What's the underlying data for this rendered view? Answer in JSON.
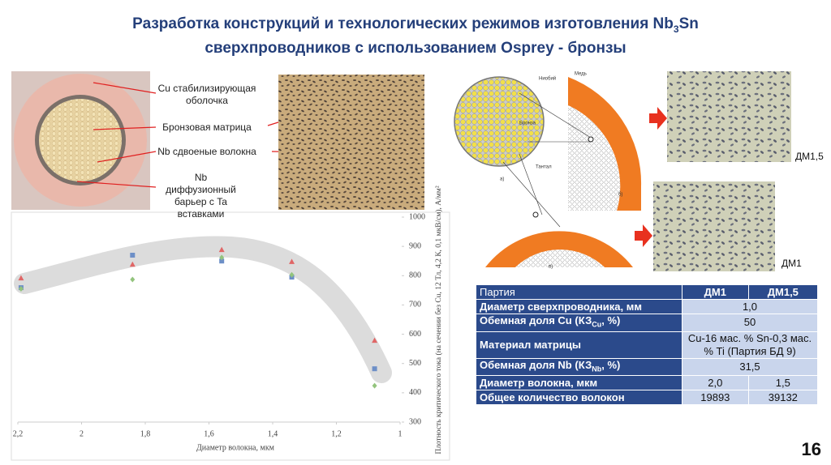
{
  "header": {
    "title_1": "Разработка конструкций и технологических режимов изготовления Nb",
    "title_sub": "3",
    "title_2": "Sn",
    "title_3": "сверхпроводников с использованием Osprey - бронзы"
  },
  "image_labels": [
    "Cu стабилизирующая оболочка",
    "Бронзовая матрица",
    "Nb сдвоеные волокна",
    "Nb диффузионный барьер с Ta вставками"
  ],
  "diagram_labels": {
    "niobium": "Ниобий",
    "copper": "Медь",
    "bronze": "Бронза",
    "tantalum": "Тантал",
    "a": "а)",
    "b": "б)",
    "c": "в)"
  },
  "micrograph_labels": [
    "ДМ1,5",
    "ДМ1"
  ],
  "chart_data": {
    "type": "scatter",
    "x_label": "Диаметр волокна, мкм",
    "y_label": "Плотность критического тока (на сечении без Cu, 12 Тл, 4,2 К, 0,1 мкВ/см), А/мм²",
    "x": [
      2.19,
      1.84,
      1.56,
      1.34,
      1.08
    ],
    "series": [
      {
        "color": "#e06666",
        "marker": "triangle",
        "values": [
          792,
          839,
          889,
          848,
          579
        ]
      },
      {
        "color": "#6d8fc7",
        "marker": "square",
        "values": [
          759,
          870,
          850,
          795,
          482
        ]
      },
      {
        "color": "#93c47d",
        "marker": "diamond",
        "values": [
          755,
          787,
          862,
          803,
          424
        ]
      }
    ],
    "xlim": [
      2.2,
      1.0
    ],
    "ylim": [
      300,
      1000
    ],
    "xticks": [
      {
        "value": 2.2,
        "label": "2,2"
      },
      2,
      {
        "value": 1.8,
        "label": "1,8"
      },
      {
        "value": 1.6,
        "label": "1,6"
      },
      {
        "value": 1.4,
        "label": "1,4"
      },
      {
        "value": 1.2,
        "label": "1,2"
      },
      1
    ],
    "yticks": [
      300,
      400,
      500,
      600,
      700,
      800,
      900,
      1000
    ],
    "y_axis_side": "right"
  },
  "table": {
    "header": [
      "Партия",
      "ДМ1",
      "ДМ1,5"
    ],
    "rows": [
      [
        "Диаметр сверхпроводника, мм",
        "1,0"
      ],
      [
        {
          "text": "Обемная доля Cu (КЗ",
          "sub": "Cu",
          "tail": ", %)"
        },
        "50"
      ],
      [
        "Материал матрицы",
        "Cu-16 мас. % Sn-0,3 мас. % Ti (Партия БД 9)"
      ],
      [
        {
          "text": "Обемная доля Nb (КЗ",
          "sub": "Nb",
          "tail": ", %)"
        },
        "31,5"
      ],
      [
        "Диаметр волокна, мкм",
        "2,0",
        "1,5"
      ],
      [
        "Общее количество волокон",
        "19893",
        "39132"
      ]
    ]
  },
  "page_number": "16"
}
